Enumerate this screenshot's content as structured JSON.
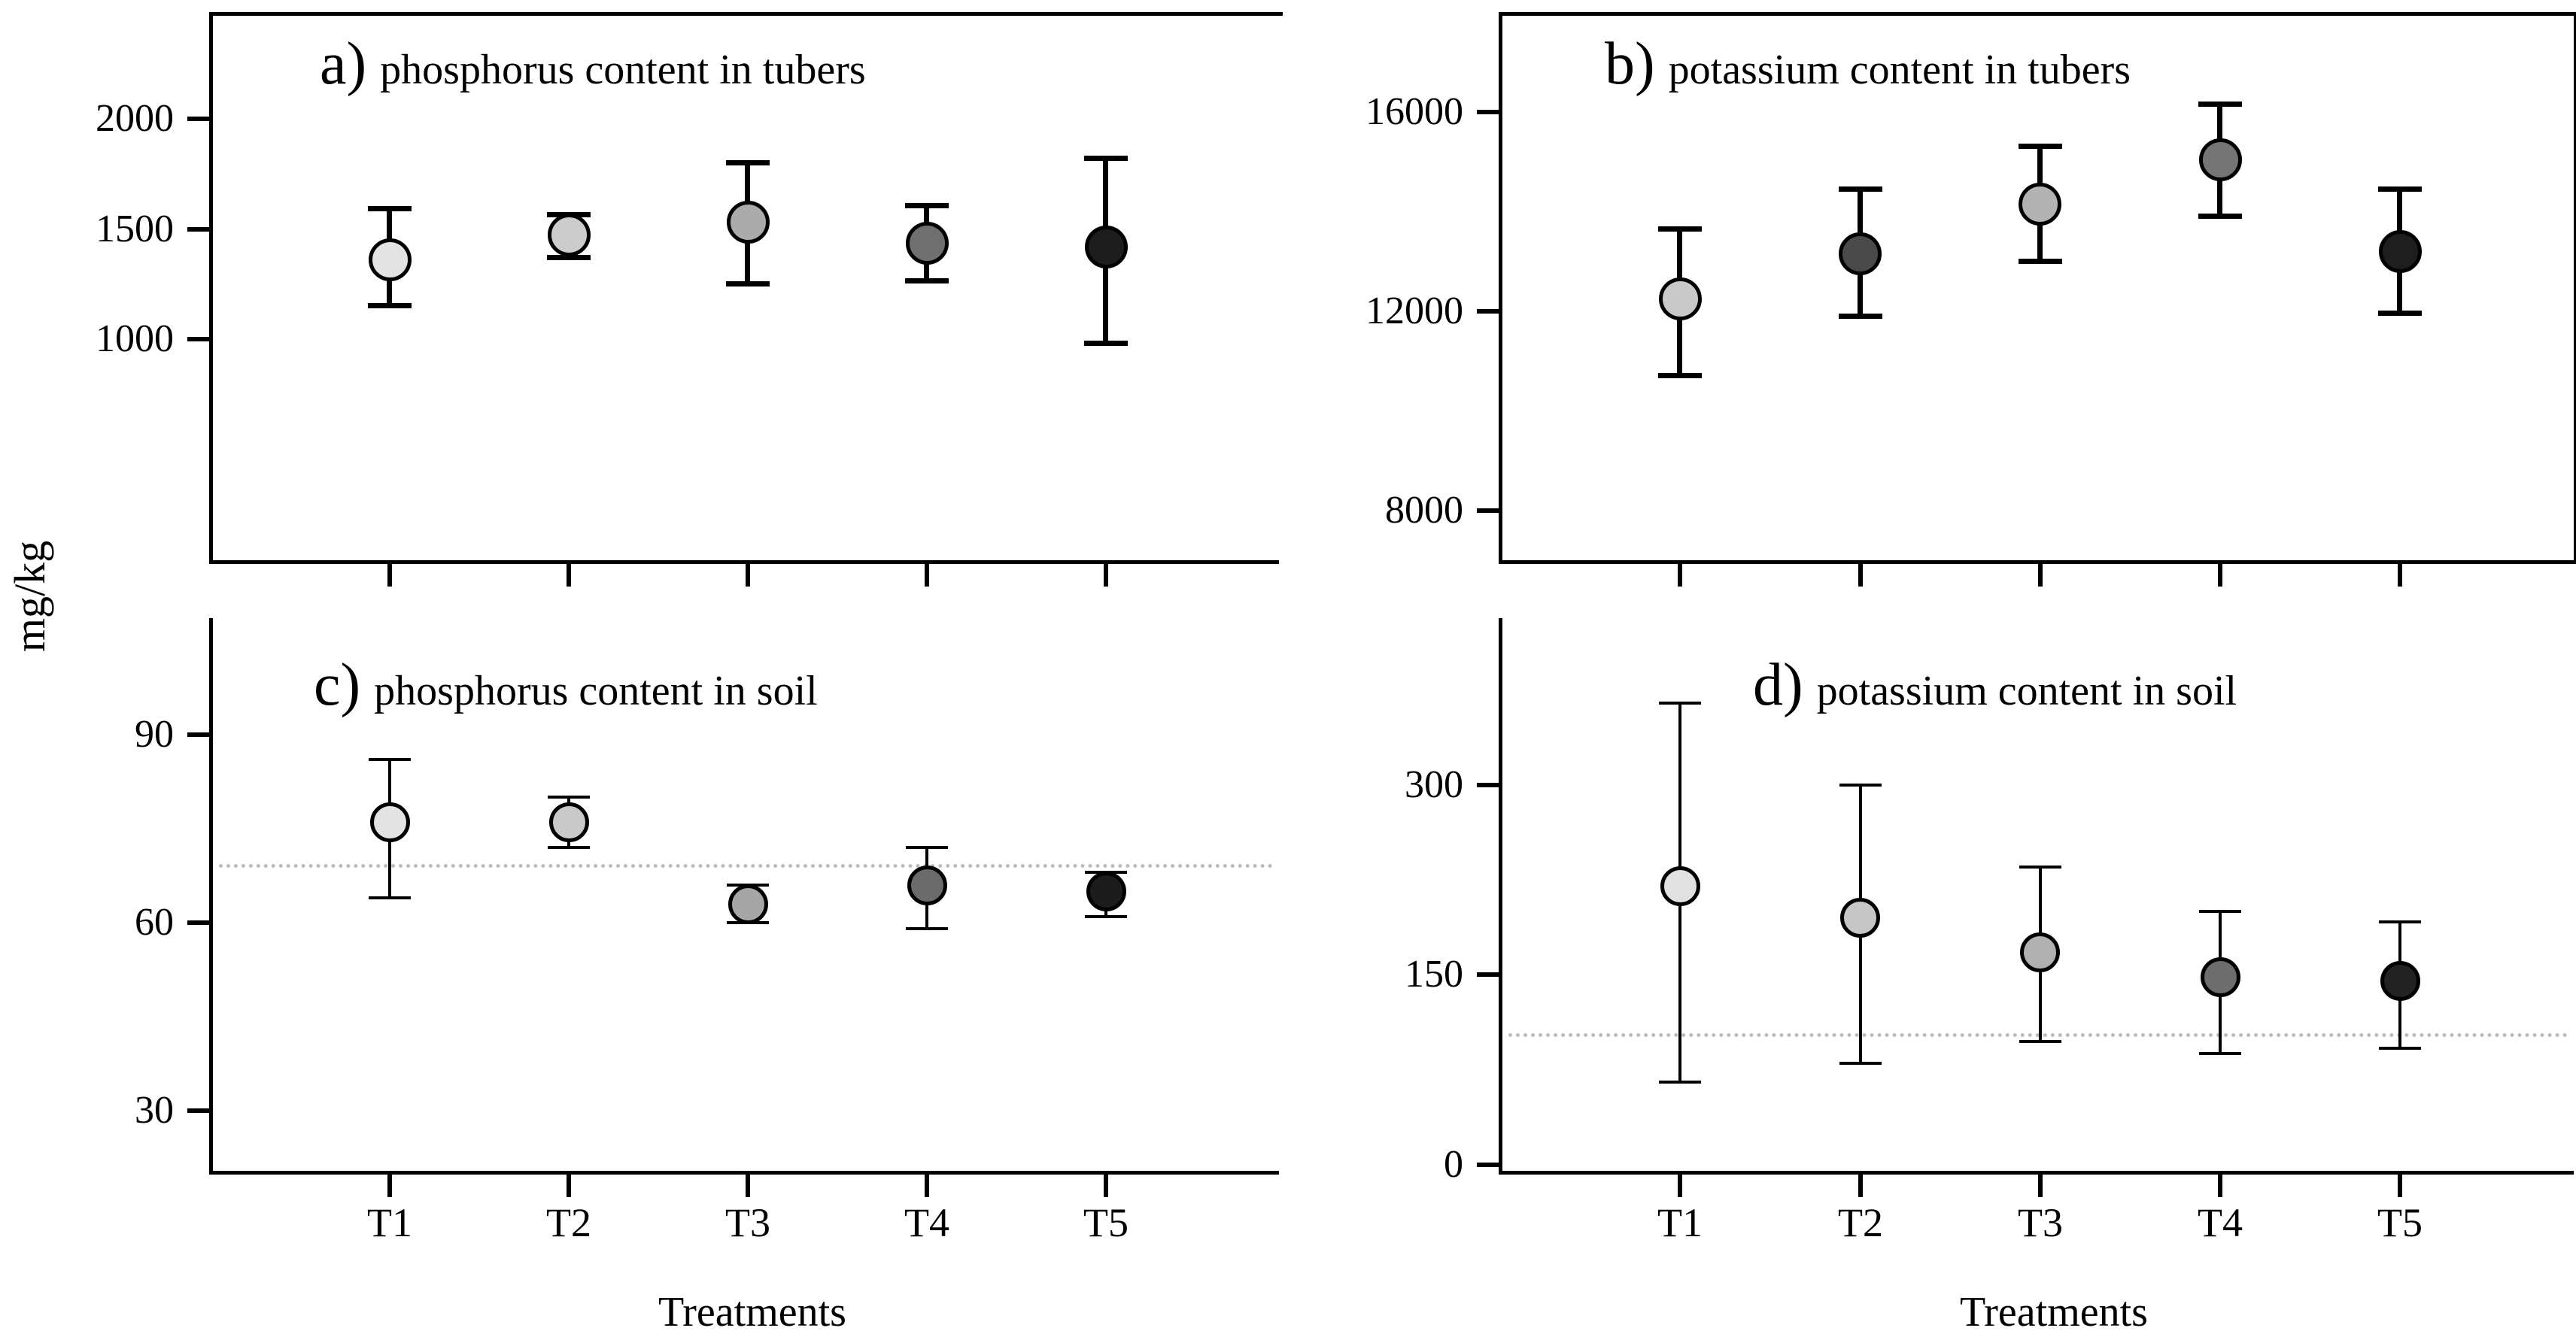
{
  "figure": {
    "ylabel": "mg/kg",
    "xlabel": "Treatments",
    "categories": [
      "T1",
      "T2",
      "T3",
      "T4",
      "T5"
    ]
  },
  "chart_data": [
    {
      "id": "a",
      "type": "scatter",
      "title_prefix": "a)",
      "title": "phosphorus content in tubers",
      "categories": [
        "T1",
        "T2",
        "T3",
        "T4",
        "T5"
      ],
      "values": [
        1360,
        1475,
        1530,
        1435,
        1420
      ],
      "err_low": [
        1150,
        1370,
        1250,
        1265,
        980
      ],
      "err_high": [
        1590,
        1565,
        1800,
        1605,
        1820
      ],
      "yticks": [
        1000,
        1500,
        2000
      ],
      "ylim": [
        0,
        2470
      ],
      "reference_line": null,
      "point_colors": [
        "#e3e3e3",
        "#cccccc",
        "#ababab",
        "#6f6f6f",
        "#1d1d1d"
      ],
      "legend": "none",
      "grid": "off"
    },
    {
      "id": "b",
      "type": "scatter",
      "title_prefix": "b)",
      "title": "potassium content in tubers",
      "categories": [
        "T1",
        "T2",
        "T3",
        "T4",
        "T5"
      ],
      "values": [
        12250,
        13150,
        14150,
        15050,
        13200
      ],
      "err_low": [
        10700,
        11900,
        13000,
        13900,
        11950
      ],
      "err_high": [
        13650,
        14450,
        15300,
        16150,
        14450
      ],
      "yticks": [
        8000,
        12000,
        16000
      ],
      "ylim": [
        7000,
        17950
      ],
      "reference_line": null,
      "point_colors": [
        "#c9c9c9",
        "#4a4a4a",
        "#b3b3b3",
        "#757575",
        "#1e1e1e"
      ],
      "legend": "none",
      "grid": "off"
    },
    {
      "id": "c",
      "type": "scatter",
      "title_prefix": "c)",
      "title": "phosphorus content in soil",
      "categories": [
        "T1",
        "T2",
        "T3",
        "T4",
        "T5"
      ],
      "values": [
        76,
        76,
        63,
        66,
        65
      ],
      "err_low": [
        64,
        72,
        60,
        59,
        61
      ],
      "err_high": [
        86,
        80,
        66,
        72,
        68
      ],
      "yticks": [
        30,
        60,
        90
      ],
      "ylim": [
        20.4,
        108.6
      ],
      "reference_line": 69,
      "point_colors": [
        "#e3e3e3",
        "#c9c9c9",
        "#a6a6a6",
        "#6b6b6b",
        "#1c1c1c"
      ],
      "legend": "none",
      "grid": "off"
    },
    {
      "id": "d",
      "type": "scatter",
      "title_prefix": "d)",
      "title": "potassium content in soil",
      "categories": [
        "T1",
        "T2",
        "T3",
        "T4",
        "T5"
      ],
      "values": [
        220,
        195,
        168,
        148,
        145
      ],
      "err_low": [
        65,
        80,
        97,
        88,
        92
      ],
      "err_high": [
        365,
        300,
        235,
        200,
        192
      ],
      "yticks": [
        0,
        150,
        300
      ],
      "ylim": [
        -5,
        432
      ],
      "reference_line": 102,
      "point_colors": [
        "#e1e1e1",
        "#c6c6c6",
        "#b0b0b0",
        "#6d6d6d",
        "#222222"
      ],
      "legend": "none",
      "grid": "off"
    }
  ]
}
